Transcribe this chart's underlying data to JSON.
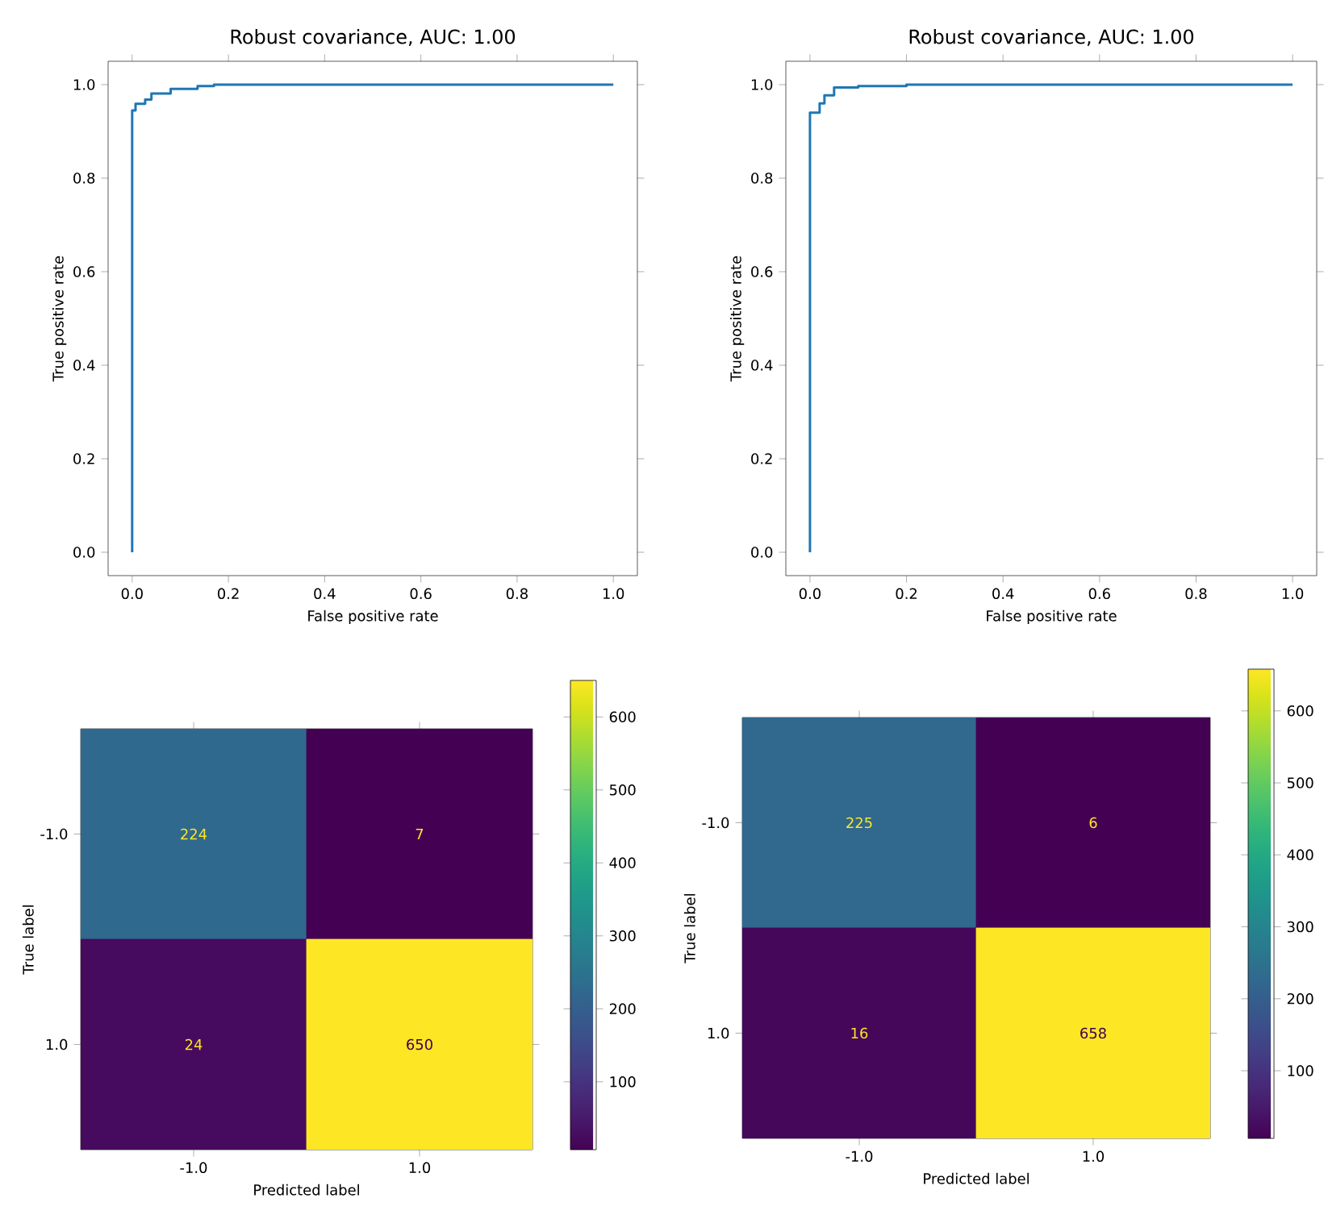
{
  "chart_data": [
    {
      "type": "step",
      "title": "Robust covariance, AUC: 1.00",
      "xlabel": "False positive rate",
      "ylabel": "True positive rate",
      "series": [
        {
          "color": "#1f77b4",
          "x": [
            0,
            0,
            0.007,
            0.027,
            0.04,
            0.08,
            0.136,
            0.17,
            1.0
          ],
          "values": [
            0,
            0.945,
            0.959,
            0.968,
            0.981,
            0.991,
            0.997,
            1.0,
            1.0
          ]
        }
      ],
      "xlim": [
        -0.05,
        1.05
      ],
      "ylim": [
        -0.05,
        1.05
      ],
      "xticks": [
        {
          "value": 0,
          "label": "0.0"
        },
        {
          "value": 0.2,
          "label": "0.2"
        },
        {
          "value": 0.4,
          "label": "0.4"
        },
        {
          "value": 0.6,
          "label": "0.6"
        },
        {
          "value": 0.8,
          "label": "0.8"
        },
        {
          "value": 1,
          "label": "1.0"
        }
      ],
      "yticks": [
        {
          "value": 0,
          "label": "0.0"
        },
        {
          "value": 0.2,
          "label": "0.2"
        },
        {
          "value": 0.4,
          "label": "0.4"
        },
        {
          "value": 0.6,
          "label": "0.6"
        },
        {
          "value": 0.8,
          "label": "0.8"
        },
        {
          "value": 1,
          "label": "1.0"
        }
      ]
    },
    {
      "type": "step",
      "title": "Robust covariance, AUC: 1.00",
      "xlabel": "False positive rate",
      "ylabel": "True positive rate",
      "series": [
        {
          "color": "#1f77b4",
          "x": [
            0,
            0,
            0.02,
            0.03,
            0.05,
            0.1,
            0.2,
            1.0
          ],
          "values": [
            0,
            0.94,
            0.96,
            0.977,
            0.994,
            0.997,
            1.0,
            1.0
          ]
        }
      ],
      "xlim": [
        -0.05,
        1.05
      ],
      "ylim": [
        -0.05,
        1.05
      ],
      "xticks": [
        {
          "value": 0,
          "label": "0.0"
        },
        {
          "value": 0.2,
          "label": "0.2"
        },
        {
          "value": 0.4,
          "label": "0.4"
        },
        {
          "value": 0.6,
          "label": "0.6"
        },
        {
          "value": 0.8,
          "label": "0.8"
        },
        {
          "value": 1,
          "label": "1.0"
        }
      ],
      "yticks": [
        {
          "value": 0,
          "label": "0.0"
        },
        {
          "value": 0.2,
          "label": "0.2"
        },
        {
          "value": 0.4,
          "label": "0.4"
        },
        {
          "value": 0.6,
          "label": "0.6"
        },
        {
          "value": 0.8,
          "label": "0.8"
        },
        {
          "value": 1,
          "label": "1.0"
        }
      ]
    },
    {
      "type": "heatmap",
      "xlabel": "Predicted label",
      "ylabel": "True label",
      "categories": [
        "-1.0",
        "1.0"
      ],
      "y_categories": [
        "-1.0",
        "1.0"
      ],
      "cells": [
        [
          224,
          7
        ],
        [
          24,
          650
        ]
      ],
      "data_labels": true,
      "clim": [
        7,
        650
      ],
      "cticks": [
        100,
        200,
        300,
        400,
        500,
        600
      ]
    },
    {
      "type": "heatmap",
      "xlabel": "Predicted label",
      "ylabel": "True label",
      "categories": [
        "-1.0",
        "1.0"
      ],
      "y_categories": [
        "-1.0",
        "1.0"
      ],
      "cells": [
        [
          225,
          6
        ],
        [
          16,
          658
        ]
      ],
      "data_labels": true,
      "clim": [
        6,
        658
      ],
      "cticks": [
        100,
        200,
        300,
        400,
        500,
        600
      ]
    }
  ]
}
